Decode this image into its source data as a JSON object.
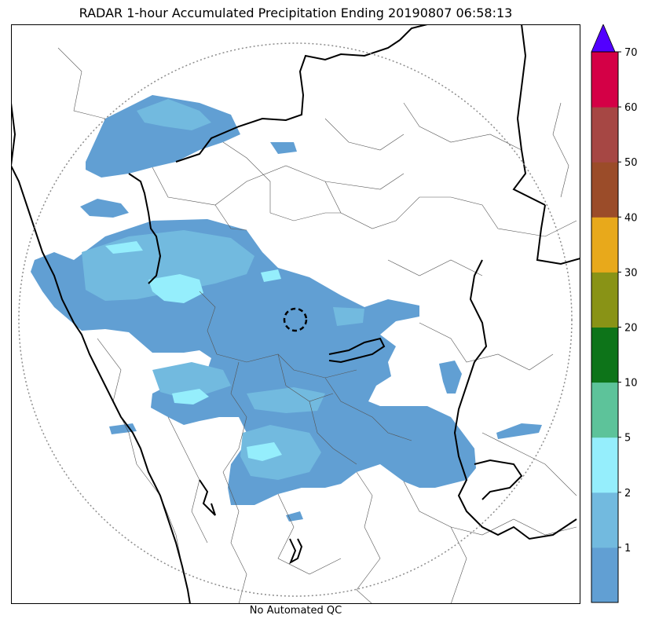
{
  "title": "RADAR 1-hour Accumulated Precipitation Ending 20190807 06:58:13",
  "footer": "No Automated QC",
  "colorbar": {
    "labels": [
      "1",
      "2",
      "5",
      "10",
      "20",
      "30",
      "40",
      "50",
      "60",
      "70"
    ],
    "colors": [
      "#619fd3",
      "#72badf",
      "#95eefc",
      "#5dc39a",
      "#0d7419",
      "#899316",
      "#e8a91b",
      "#9b4c29",
      "#a64744",
      "#d40046"
    ],
    "extend_color": "#5200ff"
  },
  "map": {
    "colors": {
      "precip_light": "#619fd3",
      "precip_medium": "#72badf",
      "precip_heavy": "#95eefc",
      "state_border": "#000000",
      "district_border": "#555555",
      "range_ring": "#8c8c8c"
    },
    "features": [
      "radar-range-ring",
      "radar-site-circle",
      "state-borders",
      "district-borders",
      "coastline"
    ]
  }
}
